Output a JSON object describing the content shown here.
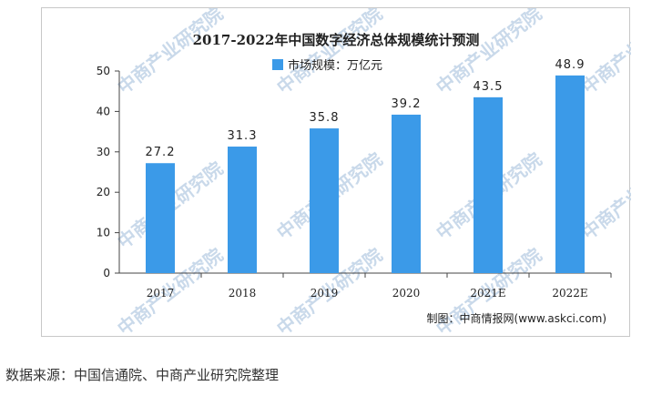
{
  "chart_data": {
    "type": "bar",
    "title": "2017-2022年中国数字经济总体规模统计预测",
    "legend": "市场规模：万亿元",
    "legend_position": "top-center",
    "categories": [
      "2017",
      "2018",
      "2019",
      "2020",
      "2021E",
      "2022E"
    ],
    "series": [
      {
        "name": "市场规模：万亿元",
        "values": [
          27.2,
          31.3,
          35.8,
          39.2,
          43.5,
          48.9
        ]
      }
    ],
    "value_labels": [
      "27.2",
      "31.3",
      "35.8",
      "39.2",
      "43.5",
      "48.9"
    ],
    "ylim": [
      0,
      50
    ],
    "yticks": [
      0,
      10,
      20,
      30,
      40,
      50
    ],
    "ytick_labels": [
      "0",
      "10",
      "20",
      "30",
      "40",
      "50"
    ],
    "xlabel": "",
    "ylabel": "",
    "grid": false,
    "bar_color": "#3b9ae8",
    "credit": "制图：中商情报网(www.askci.com)"
  },
  "watermark": "中商产业研究院",
  "source_note": "数据来源：中国信通院、中商产业研究院整理"
}
